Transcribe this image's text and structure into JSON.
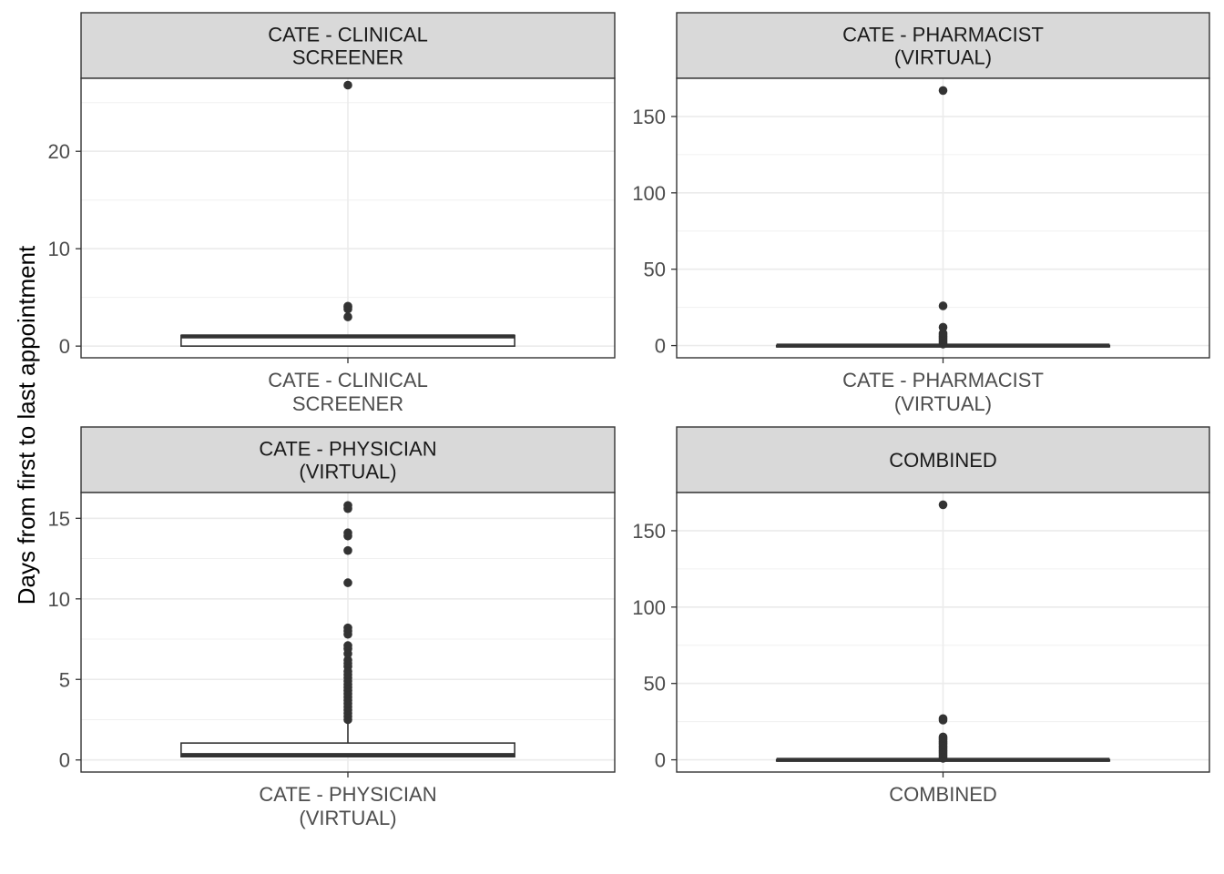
{
  "chart_data": {
    "type": "boxplot",
    "ylabel": "Days from first to last appointment",
    "grid": true,
    "panels": [
      {
        "strip": [
          "CATE - CLINICAL",
          "SCREENER"
        ],
        "category": [
          "CATE - CLINICAL",
          "SCREENER"
        ],
        "ylim": [
          -1.2,
          27.5
        ],
        "yticks": [
          0,
          10,
          20
        ],
        "box": {
          "q1": 0.0,
          "median": 1.0,
          "q3": 1.1,
          "whisker_low": 0.0,
          "whisker_high": 1.1
        },
        "outliers": [
          3.0,
          3.8,
          4.0,
          4.1,
          26.8
        ]
      },
      {
        "strip": [
          "CATE - PHARMACIST",
          "(VIRTUAL)"
        ],
        "category": [
          "CATE - PHARMACIST",
          "(VIRTUAL)"
        ],
        "ylim": [
          -8,
          175
        ],
        "yticks": [
          0,
          50,
          100,
          150
        ],
        "box": {
          "q1": 0.0,
          "median": 0.0,
          "q3": 0.1,
          "whisker_low": 0.0,
          "whisker_high": 0.1
        },
        "outliers": [
          1,
          2,
          3,
          4,
          5,
          6,
          7,
          8,
          12,
          26,
          167
        ]
      },
      {
        "strip": [
          "CATE - PHYSICIAN",
          "(VIRTUAL)"
        ],
        "category": [
          "CATE - PHYSICIAN",
          "(VIRTUAL)"
        ],
        "ylim": [
          -0.75,
          16.6
        ],
        "yticks": [
          0,
          5,
          10,
          15
        ],
        "box": {
          "q1": 0.2,
          "median": 0.3,
          "q3": 1.05,
          "whisker_low": 0.2,
          "whisker_high": 2.3
        },
        "outliers": [
          2.5,
          2.7,
          2.9,
          3.1,
          3.3,
          3.5,
          3.7,
          3.9,
          4.1,
          4.3,
          4.5,
          4.7,
          4.9,
          5.1,
          5.3,
          5.5,
          5.8,
          6.0,
          6.2,
          6.6,
          6.9,
          7.1,
          7.8,
          8.0,
          8.2,
          11.0,
          13.0,
          13.9,
          14.1,
          15.6,
          15.8
        ]
      },
      {
        "strip": [
          "COMBINED"
        ],
        "category": [
          "COMBINED"
        ],
        "ylim": [
          -8,
          175
        ],
        "yticks": [
          0,
          50,
          100,
          150
        ],
        "box": {
          "q1": 0.0,
          "median": 0.0,
          "q3": 0.1,
          "whisker_low": 0.0,
          "whisker_high": 0.1
        },
        "outliers": [
          1,
          2,
          3,
          4,
          5,
          6,
          7,
          8,
          9,
          10,
          11,
          12,
          13,
          14,
          15,
          26,
          27,
          167
        ]
      }
    ]
  }
}
